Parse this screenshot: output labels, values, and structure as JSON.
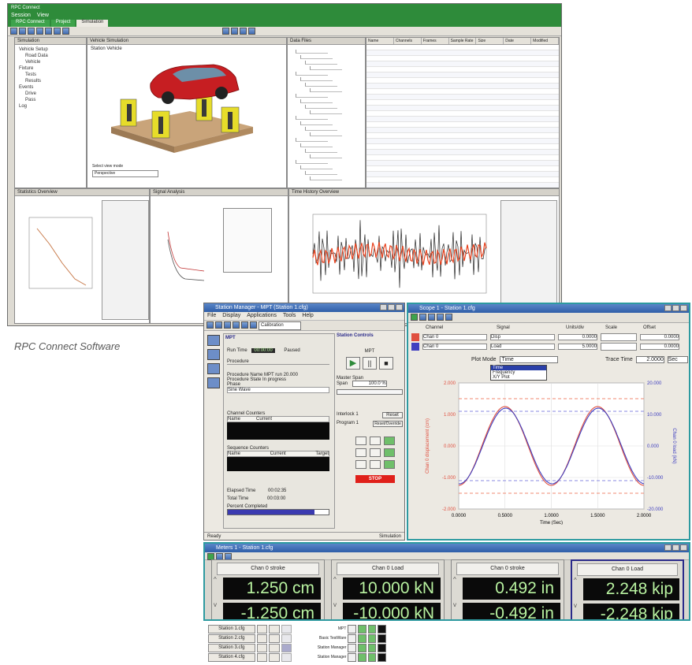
{
  "caption": "RPC Connect Software",
  "rpc_connect": {
    "title": "RPC Connect",
    "menu": [
      "Session",
      "View"
    ],
    "tabs": [
      "RPC Connect",
      "Project",
      "Simulation"
    ],
    "left_panel": {
      "title": "Simulation",
      "items": [
        "Vehicle Setup",
        "Road Data",
        "Vehicle",
        "Fixture",
        "Tests",
        "Results",
        "Events",
        "Drive",
        "Pass",
        "Log"
      ]
    },
    "viewport": {
      "title": "Vehicle Simulation",
      "label": "Station Vehicle",
      "footer_label": "Select view mode",
      "footer_value": "Perspective"
    },
    "file_panel": {
      "title": "Data Files",
      "columns": [
        "Name",
        "Channels",
        "Frames",
        "Sample Rate",
        "Size",
        "Date",
        "Modified"
      ]
    },
    "bottom_panels": [
      {
        "title": "Statistics Overview"
      },
      {
        "title": "Signal Analysis"
      },
      {
        "title": "Time History Overview"
      }
    ]
  },
  "station_manager": {
    "title": "Station Manager - MPT (Station 1.cfg)",
    "menu": [
      "File",
      "Display",
      "Applications",
      "Tools",
      "Help"
    ],
    "mode": "Calibration",
    "station_controls": "Station Controls",
    "mpt": "MPT",
    "sections": {
      "run_time": "Run Time",
      "run_time_value": "00:00:00",
      "paused": "Paused",
      "procedure": "Procedure",
      "procedure_name": "Procedure Name",
      "procedure_value": "MPT run 20.000",
      "procedure_state": "Procedure State",
      "procedure_state_value": "In progress",
      "phase": "Phase",
      "phase_value": "Sine Wave",
      "channel_counters": "Channel Counters",
      "name_col": "Name",
      "current_col": "Current",
      "sequence_counters": "Sequence Counters",
      "target_col": "Target",
      "elapsed_label": "Elapsed Time",
      "elapsed_value": "00:02:35",
      "total_label": "Total Time",
      "total_value": "00:03:00",
      "percent_label": "Percent Completed"
    },
    "master_span": "Master Span",
    "span_label": "Span",
    "span_value": "100.0 %",
    "interlock": "Interlock 1",
    "program": "Program 1",
    "reset": "Reset",
    "reset_override": "Reset/Override",
    "stop": "STOP",
    "status_left": "Ready",
    "status_right": "Simulation"
  },
  "scope": {
    "title": "Scope 1 - Station 1.cfg",
    "columns": [
      "Channel",
      "Signal",
      "Units/div",
      "Scale",
      "Offset"
    ],
    "rows": [
      {
        "channel": "Chan 0",
        "signal": "Disp",
        "units": "0.0000",
        "scale": "0.0000"
      },
      {
        "channel": "Chan 0",
        "signal": "Load",
        "units": "5.0000",
        "scale": "0.0000"
      }
    ],
    "plot_mode_label": "Plot Mode",
    "plot_mode_value": "Time",
    "plot_mode_options": [
      "Time",
      "Frequency",
      "X/Y Plot"
    ],
    "trace_time_label": "Trace Time",
    "trace_time_value": "2.0000",
    "trace_time_unit": "Sec",
    "chart": {
      "type": "line",
      "xlabel": "Time (Sec)",
      "ylabel_left": "Chan 0 displacement (cm)",
      "ylabel_right": "Chan 0 load (kN)",
      "x_ticks": [
        "0.0000",
        "0.5000",
        "1.0000",
        "1.5000",
        "2.0000"
      ],
      "y_left_ticks": [
        "2.000",
        "1.000",
        "0.000",
        "-1.000",
        "-2.000"
      ],
      "y_right_ticks": [
        "20.000",
        "10.000",
        "0.000",
        "-10.000",
        "-20.000"
      ],
      "xlim": [
        0,
        2
      ],
      "ylim": [
        -2,
        2
      ],
      "series": [
        {
          "amplitude": 1.25,
          "frequency": 1.0,
          "phase": 0.0,
          "color": "#e05040"
        },
        {
          "amplitude": 1.2,
          "frequency": 1.0,
          "phase": -0.05,
          "color": "#4040c0"
        }
      ],
      "limits_left": [
        1.5,
        -1.5
      ],
      "limits_right": [
        1.1,
        -1.1
      ]
    }
  },
  "meters": {
    "title": "Meters 1 - Station 1.cfg",
    "channels": [
      {
        "name": "Chan 0 stroke",
        "max": "1.250 cm",
        "min": "-1.250 cm"
      },
      {
        "name": "Chan 0 Load",
        "max": "10.000 kN",
        "min": "-10.000 kN"
      },
      {
        "name": "Chan 0 stroke",
        "max": "0.492 in",
        "min": "-0.492 in"
      },
      {
        "name": "Chan 0 Load",
        "max": "2.248 kip",
        "min": "-2.248 kip"
      }
    ]
  },
  "stations": {
    "items": [
      "Station 1.cfg",
      "Station 2.cfg",
      "Station 3.cfg",
      "Station 4.cfg"
    ],
    "labels": [
      "MPT",
      "Basic TestWare",
      "Station Manager",
      "Station Manager"
    ]
  },
  "colors": {
    "green_accent": "#2e8b3a",
    "lcd_text": "#b8f2a0",
    "stop": "#e0201a",
    "red_trace": "#e05040",
    "blue_trace": "#4040c0"
  }
}
